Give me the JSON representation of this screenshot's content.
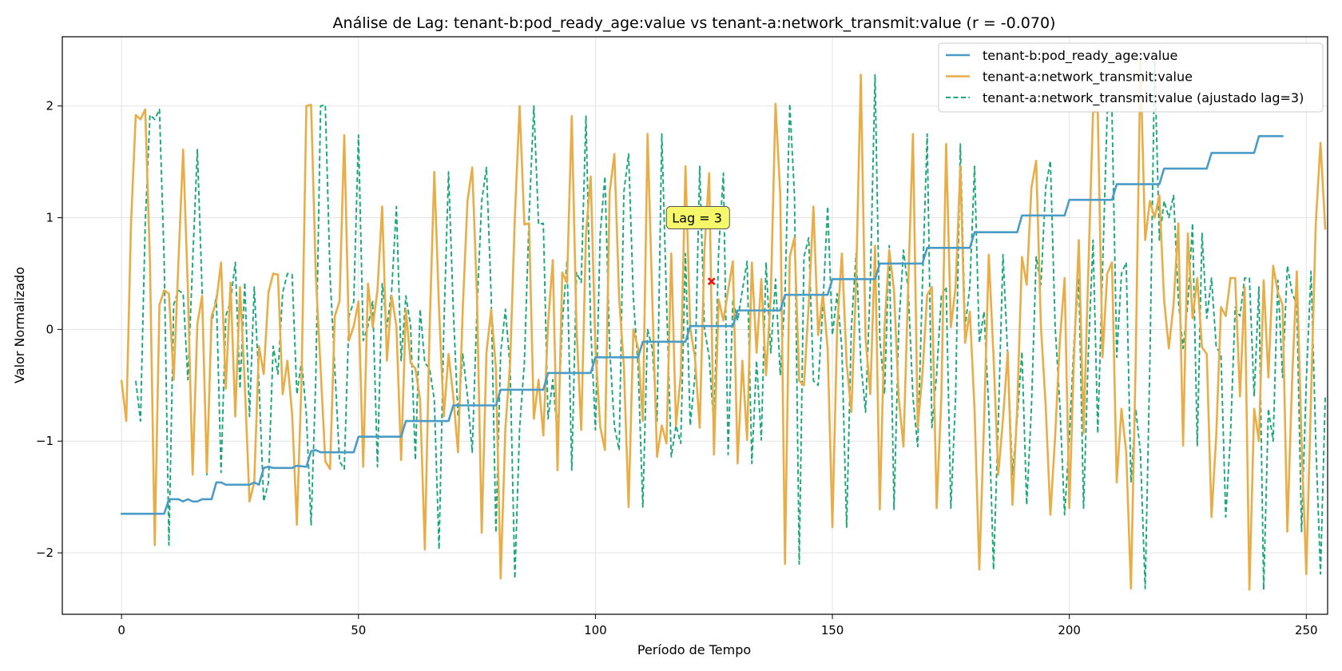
{
  "chart_data": {
    "type": "line",
    "title": "Análise de Lag: tenant-b:pod_ready_age:value vs tenant-a:network_transmit:value (r = -0.070)",
    "xlabel": "Período de Tempo",
    "ylabel": "Valor Normalizado",
    "xlim": [
      -12.5,
      254.5
    ],
    "ylim": [
      -2.55,
      2.62
    ],
    "xticks": [
      0,
      50,
      100,
      150,
      200,
      250
    ],
    "yticks": [
      -2,
      -1,
      0,
      1,
      2
    ],
    "ytick_labels": [
      "−2",
      "−1",
      "0",
      "1",
      "2"
    ],
    "grid": true,
    "legend_position": "top-right",
    "annotation": {
      "text": "Lag = 3",
      "x": 124.5,
      "y": 0.43,
      "text_x": 116.5,
      "text_y": 1.0
    },
    "colors": {
      "series_b": "#4a9cc7",
      "series_a": "#e9ad47",
      "series_shift": "#18a67a",
      "marker": "#ee1111",
      "annot_bg": "#f7f76a"
    },
    "series": [
      {
        "name": "tenant-b:pod_ready_age:value",
        "style": "solid",
        "points": [
          [
            0,
            -1.65
          ],
          [
            9,
            -1.65
          ],
          [
            10,
            -1.52
          ],
          [
            12,
            -1.52
          ],
          [
            13,
            -1.54
          ],
          [
            14,
            -1.52
          ],
          [
            15,
            -1.54
          ],
          [
            16,
            -1.54
          ],
          [
            17,
            -1.52
          ],
          [
            19,
            -1.52
          ],
          [
            20,
            -1.37
          ],
          [
            21,
            -1.37
          ],
          [
            22,
            -1.39
          ],
          [
            27,
            -1.39
          ],
          [
            28,
            -1.37
          ],
          [
            29,
            -1.39
          ],
          [
            30,
            -1.24
          ],
          [
            31,
            -1.23
          ],
          [
            32,
            -1.24
          ],
          [
            36,
            -1.24
          ],
          [
            37,
            -1.22
          ],
          [
            39,
            -1.23
          ],
          [
            40,
            -1.09
          ],
          [
            41,
            -1.08
          ],
          [
            42,
            -1.1
          ],
          [
            49,
            -1.1
          ],
          [
            50,
            -0.96
          ],
          [
            59,
            -0.96
          ],
          [
            60,
            -0.82
          ],
          [
            69,
            -0.82
          ],
          [
            70,
            -0.68
          ],
          [
            79,
            -0.68
          ],
          [
            80,
            -0.54
          ],
          [
            89,
            -0.54
          ],
          [
            90,
            -0.39
          ],
          [
            99,
            -0.39
          ],
          [
            100,
            -0.25
          ],
          [
            109,
            -0.25
          ],
          [
            110,
            -0.11
          ],
          [
            119,
            -0.11
          ],
          [
            120,
            0.03
          ],
          [
            129,
            0.03
          ],
          [
            130,
            0.17
          ],
          [
            139,
            0.17
          ],
          [
            140,
            0.31
          ],
          [
            149,
            0.31
          ],
          [
            150,
            0.45
          ],
          [
            159,
            0.45
          ],
          [
            160,
            0.59
          ],
          [
            169,
            0.59
          ],
          [
            170,
            0.73
          ],
          [
            179,
            0.73
          ],
          [
            180,
            0.87
          ],
          [
            189,
            0.87
          ],
          [
            190,
            1.02
          ],
          [
            199,
            1.02
          ],
          [
            200,
            1.16
          ],
          [
            209,
            1.16
          ],
          [
            210,
            1.3
          ],
          [
            219,
            1.3
          ],
          [
            220,
            1.44
          ],
          [
            229,
            1.44
          ],
          [
            230,
            1.58
          ],
          [
            239,
            1.58
          ],
          [
            240,
            1.73
          ],
          [
            245,
            1.73
          ]
        ]
      },
      {
        "name": "tenant-a:network_transmit:value",
        "style": "solid",
        "y": [
          -0.46,
          -0.82,
          0.95,
          1.92,
          1.88,
          1.97,
          0.6,
          -1.93,
          0.22,
          0.35,
          0.32,
          -0.45,
          0.6,
          1.61,
          0.35,
          -1.3,
          0.05,
          0.3,
          -1.28,
          0.12,
          0.25,
          0.6,
          -0.53,
          0.42,
          -0.78,
          0.38,
          -0.48,
          -1.54,
          -1.37,
          -0.15,
          -0.4,
          0.33,
          0.5,
          0.49,
          -0.58,
          -0.28,
          -0.76,
          -1.75,
          -0.42,
          2.0,
          2.01,
          0.48,
          -0.35,
          -1.18,
          -1.25,
          0.12,
          0.25,
          1.74,
          -0.1,
          0.03,
          0.25,
          -1.23,
          0.41,
          0.02,
          0.35,
          1.1,
          -0.28,
          0.3,
          0.03,
          -1.17,
          0.18,
          -0.3,
          -0.35,
          -0.63,
          -1.97,
          0.0,
          1.41,
          0.18,
          -0.78,
          -0.22,
          -0.6,
          -1.1,
          0.18,
          1.15,
          1.45,
          0.3,
          -1.82,
          -0.21,
          0.18,
          -0.35,
          -2.23,
          -0.88,
          -0.3,
          1.01,
          2.0,
          0.94,
          0.95,
          -0.8,
          -0.45,
          -0.95,
          0.05,
          0.62,
          -1.26,
          0.51,
          0.42,
          1.91,
          0.02,
          -0.9,
          0.85,
          1.37,
          -0.17,
          -0.87,
          -1.08,
          1.23,
          1.57,
          0.28,
          -0.33,
          -1.59,
          0.0,
          -0.17,
          -0.82,
          1.75,
          0.26,
          -1.14,
          -0.86,
          -1.02,
          0.68,
          -0.86,
          -0.41,
          1.46,
          0.01,
          -0.25,
          -0.88,
          0.71,
          1.4,
          -1.12,
          0.27,
          0.08,
          0.35,
          0.61,
          -1.2,
          -0.28,
          -0.99,
          0.6,
          -0.21,
          0.45,
          -0.41,
          0.3,
          2.02,
          1.2,
          -2.1,
          0.65,
          0.82,
          -0.46,
          -0.5,
          0.22,
          1.1,
          -0.05,
          0.32,
          -0.17,
          -1.77,
          0.01,
          0.68,
          -0.3,
          -0.74,
          0.42,
          2.28,
          -0.08,
          -0.58,
          0.75,
          -1.61,
          0.02,
          0.71,
          0.35,
          -0.61,
          -1.05,
          0.4,
          1.75,
          -0.88,
          -0.4,
          0.31,
          0.38,
          -1.6,
          -0.6,
          1.66,
          0.02,
          0.38,
          1.46,
          -0.12,
          0.16,
          -0.72,
          -2.15,
          -0.83,
          0.67,
          -0.24,
          -1.3,
          -0.8,
          -0.2,
          -1.57,
          -0.7,
          0.65,
          0.4,
          1.27,
          1.51,
          0.03,
          -0.68,
          -1.66,
          -0.96,
          -0.1,
          0.46,
          -1.6,
          -0.22,
          0.8,
          -0.93,
          0.52,
          1.95,
          1.95,
          -0.25,
          0.5,
          0.6,
          -1.37,
          -0.71,
          -1.1,
          -2.32,
          -0.28,
          2.4,
          0.8,
          1.15,
          1.0,
          1.2,
          0.26,
          -0.17,
          0.23,
          0.95,
          -1.04,
          0.86,
          0.1,
          0.46,
          -0.16,
          -0.22,
          -1.68,
          -0.95,
          0.2,
          0.12,
          0.46,
          0.46,
          -0.6,
          0.38,
          -2.33,
          -0.71,
          -1.0,
          0.44,
          -0.43,
          0.57,
          0.33,
          0.22,
          -1.81,
          -0.46,
          0.52,
          -1.0,
          -2.19,
          -0.6,
          0.95,
          1.67,
          0.9
        ]
      },
      {
        "name": "tenant-a:network_transmit:value (ajustado lag=3)",
        "style": "dashed",
        "offset": 3,
        "y": [
          -0.46,
          -0.82,
          0.95,
          1.92,
          1.88,
          1.97,
          0.6,
          -1.93,
          0.22,
          0.35,
          0.32,
          -0.45,
          0.6,
          1.61,
          0.35,
          -1.3,
          0.05,
          0.3,
          -1.28,
          0.12,
          0.25,
          0.6,
          -0.53,
          0.42,
          -0.78,
          0.38,
          -0.48,
          -1.54,
          -1.37,
          -0.15,
          -0.4,
          0.33,
          0.5,
          0.49,
          -0.58,
          -0.28,
          -0.76,
          -1.75,
          -0.42,
          2.0,
          2.01,
          0.48,
          -0.35,
          -1.18,
          -1.25,
          0.12,
          0.25,
          1.74,
          -0.1,
          0.03,
          0.25,
          -1.23,
          0.41,
          0.02,
          0.35,
          1.1,
          -0.28,
          0.3,
          0.03,
          -1.17,
          0.18,
          -0.3,
          -0.35,
          -0.63,
          -1.97,
          0.0,
          1.41,
          0.18,
          -0.78,
          -0.22,
          -0.6,
          -1.1,
          0.18,
          1.15,
          1.45,
          0.3,
          -1.82,
          -0.21,
          0.18,
          -0.35,
          -2.23,
          -0.88,
          -0.3,
          1.01,
          2.0,
          0.94,
          0.95,
          -0.8,
          -0.45,
          -0.95,
          0.05,
          0.62,
          -1.26,
          0.51,
          0.42,
          1.91,
          0.02,
          -0.9,
          0.85,
          1.37,
          -0.17,
          -0.87,
          -1.08,
          1.23,
          1.57,
          0.28,
          -0.33,
          -1.59,
          0.0,
          -0.17,
          -0.82,
          1.75,
          0.26,
          -1.14,
          -0.86,
          -1.02,
          0.68,
          -0.86,
          -0.41,
          1.46,
          0.01,
          -0.25,
          -0.88,
          0.71,
          1.4,
          -1.12,
          0.27,
          0.08,
          0.35,
          0.61,
          -1.2,
          -0.28,
          -0.99,
          0.6,
          -0.21,
          0.45,
          -0.41,
          0.3,
          2.02,
          1.2,
          -2.1,
          0.65,
          0.82,
          -0.46,
          -0.5,
          0.22,
          1.1,
          -0.05,
          0.32,
          -0.17,
          -1.77,
          0.01,
          0.68,
          -0.3,
          -0.74,
          0.42,
          2.28,
          -0.08,
          -0.58,
          0.75,
          -1.61,
          0.02,
          0.71,
          0.35,
          -0.61,
          -1.05,
          0.4,
          1.75,
          -0.88,
          -0.4,
          0.31,
          0.38,
          -1.6,
          -0.6,
          1.66,
          0.02,
          0.38,
          1.46,
          -0.12,
          0.16,
          -0.72,
          -2.15,
          -0.83,
          0.67,
          -0.24,
          -1.3,
          -0.8,
          -0.2,
          -1.57,
          -0.7,
          0.65,
          0.4,
          1.27,
          1.51,
          0.03,
          -0.68,
          -1.66,
          -0.96,
          -0.1,
          0.46,
          -1.6,
          -0.22,
          0.8,
          -0.93,
          0.52,
          1.95,
          1.95,
          -0.25,
          0.5,
          0.6,
          -1.37,
          -0.71,
          -1.1,
          -2.32,
          -0.28,
          2.4,
          0.8,
          1.15,
          1.0,
          1.2,
          0.26,
          -0.17,
          0.23,
          0.95,
          -1.04,
          0.86,
          0.1,
          0.46,
          -0.16,
          -0.22,
          -1.68,
          -0.95,
          0.2,
          0.12,
          0.46,
          0.46,
          -0.6,
          0.38,
          -2.33,
          -0.71,
          -1.0,
          0.44,
          -0.43,
          0.57,
          0.33,
          0.22,
          -1.81,
          -0.46,
          0.52,
          -1.0,
          -2.19,
          -0.6
        ]
      }
    ]
  }
}
